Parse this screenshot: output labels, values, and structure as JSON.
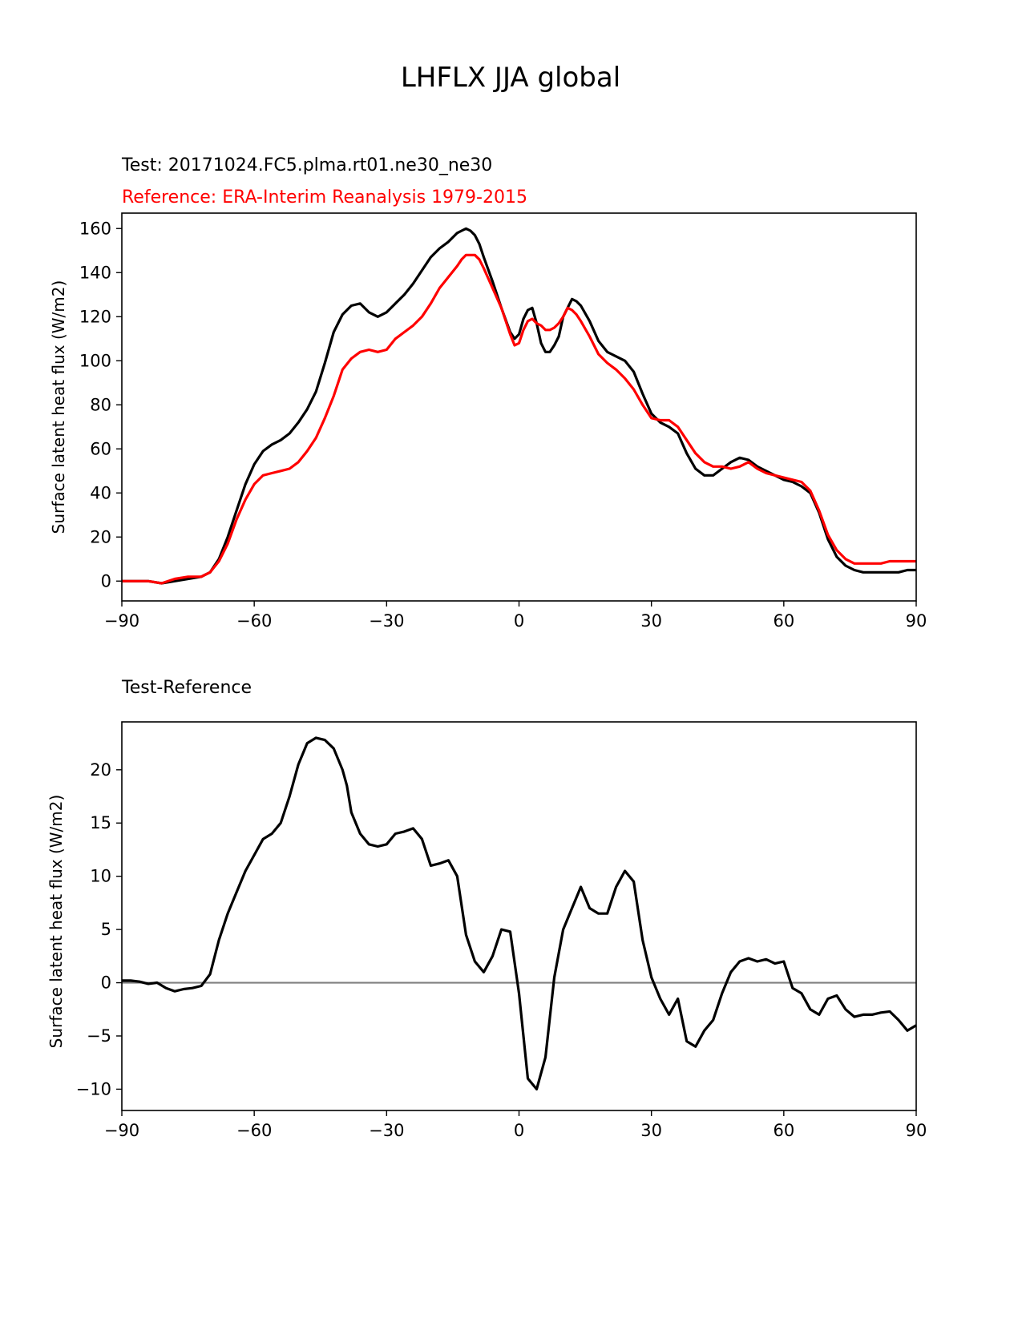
{
  "figure_title": "LHFLX JJA global",
  "colors": {
    "test": "#000000",
    "reference": "#ff0000",
    "zero_line": "#808080",
    "axes": "#000000"
  },
  "chart_data": [
    {
      "type": "line",
      "subtitle_test": "Test: 20171024.FC5.plma.rt01.ne30_ne30",
      "subtitle_ref": "Reference: ERA-Interim Reanalysis 1979-2015",
      "xlabel": "",
      "ylabel": "Surface latent heat flux (W/m2)",
      "xlim": [
        -90,
        90
      ],
      "ylim": [
        -9,
        167
      ],
      "xticks": [
        -90,
        -60,
        -30,
        0,
        30,
        60,
        90
      ],
      "xtick_labels": [
        "−90",
        "−60",
        "−30",
        "0",
        "30",
        "60",
        "90"
      ],
      "yticks": [
        0,
        20,
        40,
        60,
        80,
        100,
        120,
        140,
        160
      ],
      "ytick_labels": [
        "0",
        "20",
        "40",
        "60",
        "80",
        "100",
        "120",
        "140",
        "160"
      ],
      "series": [
        {
          "name": "Test",
          "color": "#000000",
          "x": [
            -90,
            -87,
            -84,
            -81,
            -78,
            -75,
            -72,
            -70,
            -68,
            -66,
            -64,
            -62,
            -60,
            -58,
            -56,
            -54,
            -52,
            -50,
            -48,
            -46,
            -44,
            -42,
            -40,
            -38,
            -36,
            -34,
            -32,
            -30,
            -28,
            -26,
            -24,
            -22,
            -20,
            -18,
            -16,
            -14,
            -13,
            -12,
            -11,
            -10,
            -9,
            -8,
            -6,
            -4,
            -2,
            -1,
            0,
            1,
            2,
            3,
            4,
            5,
            6,
            7,
            8,
            9,
            10,
            11,
            12,
            13,
            14,
            16,
            18,
            20,
            22,
            24,
            26,
            28,
            30,
            32,
            34,
            36,
            38,
            40,
            42,
            44,
            46,
            48,
            50,
            52,
            54,
            56,
            58,
            60,
            62,
            64,
            66,
            68,
            70,
            72,
            74,
            76,
            78,
            80,
            82,
            84,
            86,
            88,
            90
          ],
          "y": [
            0,
            0,
            0,
            -1,
            0,
            1,
            2,
            4,
            10,
            20,
            32,
            44,
            53,
            59,
            62,
            64,
            67,
            72,
            78,
            86,
            99,
            113,
            121,
            125,
            126,
            122,
            120,
            122,
            126,
            130,
            135,
            141,
            147,
            151,
            154,
            158,
            159,
            160,
            159,
            157,
            153,
            147,
            136,
            124,
            113,
            110,
            112,
            119,
            123,
            124,
            117,
            108,
            104,
            104,
            107,
            111,
            120,
            124,
            128,
            127,
            125,
            118,
            109,
            104,
            102,
            100,
            95,
            85,
            76,
            72,
            70,
            67,
            58,
            51,
            48,
            48,
            51,
            54,
            56,
            55,
            52,
            50,
            48,
            46,
            45,
            43,
            40,
            31,
            19,
            11,
            7,
            5,
            4,
            4,
            4,
            4,
            4,
            5,
            5
          ]
        },
        {
          "name": "Reference",
          "color": "#ff0000",
          "x": [
            -90,
            -87,
            -84,
            -81,
            -78,
            -75,
            -72,
            -70,
            -68,
            -66,
            -64,
            -62,
            -60,
            -58,
            -56,
            -54,
            -52,
            -50,
            -48,
            -46,
            -44,
            -42,
            -40,
            -38,
            -36,
            -34,
            -32,
            -30,
            -28,
            -26,
            -24,
            -22,
            -20,
            -18,
            -16,
            -14,
            -13,
            -12,
            -11,
            -10,
            -9,
            -8,
            -6,
            -4,
            -2,
            -1,
            0,
            1,
            2,
            3,
            4,
            5,
            6,
            7,
            8,
            9,
            10,
            11,
            12,
            13,
            14,
            16,
            18,
            20,
            22,
            24,
            26,
            28,
            30,
            32,
            34,
            36,
            38,
            40,
            42,
            44,
            46,
            48,
            50,
            52,
            54,
            56,
            58,
            60,
            62,
            64,
            66,
            68,
            70,
            72,
            74,
            76,
            78,
            80,
            82,
            84,
            86,
            88,
            90
          ],
          "y": [
            0,
            0,
            0,
            -1,
            1,
            2,
            2,
            4,
            9,
            17,
            28,
            37,
            44,
            48,
            49,
            50,
            51,
            54,
            59,
            65,
            74,
            84,
            96,
            101,
            104,
            105,
            104,
            105,
            110,
            113,
            116,
            120,
            126,
            133,
            138,
            143,
            146,
            148,
            148,
            148,
            146,
            142,
            133,
            124,
            112,
            107,
            108,
            114,
            118,
            119,
            117,
            116,
            114,
            114,
            115,
            117,
            120,
            124,
            123,
            121,
            118,
            111,
            103,
            99,
            96,
            92,
            87,
            80,
            74,
            73,
            73,
            70,
            64,
            58,
            54,
            52,
            52,
            51,
            52,
            54,
            51,
            49,
            48,
            47,
            46,
            45,
            41,
            32,
            21,
            14,
            10,
            8,
            8,
            8,
            8,
            9,
            9,
            9,
            9
          ]
        }
      ]
    },
    {
      "type": "line",
      "subtitle": "Test-Reference",
      "xlabel": "",
      "ylabel": "Surface latent heat flux (W/m2)",
      "xlim": [
        -90,
        90
      ],
      "ylim": [
        -12,
        24.5
      ],
      "xticks": [
        -90,
        -60,
        -30,
        0,
        30,
        60,
        90
      ],
      "xtick_labels": [
        "−90",
        "−60",
        "−30",
        "0",
        "30",
        "60",
        "90"
      ],
      "yticks": [
        -10,
        -5,
        0,
        5,
        10,
        15,
        20
      ],
      "ytick_labels": [
        "−10",
        "−5",
        "0",
        "5",
        "10",
        "15",
        "20"
      ],
      "zero_line": 0,
      "series": [
        {
          "name": "Test-Reference",
          "color": "#000000",
          "x": [
            -90,
            -88,
            -86,
            -84,
            -82,
            -80,
            -78,
            -76,
            -74,
            -72,
            -70,
            -68,
            -66,
            -64,
            -62,
            -60,
            -58,
            -56,
            -54,
            -52,
            -50,
            -48,
            -46,
            -44,
            -42,
            -40,
            -39,
            -38,
            -36,
            -34,
            -32,
            -30,
            -28,
            -26,
            -24,
            -22,
            -20,
            -18,
            -16,
            -14,
            -12,
            -10,
            -8,
            -6,
            -4,
            -2,
            0,
            2,
            4,
            6,
            8,
            10,
            12,
            14,
            16,
            18,
            20,
            22,
            24,
            26,
            28,
            30,
            32,
            34,
            36,
            38,
            40,
            42,
            44,
            46,
            48,
            50,
            52,
            54,
            56,
            58,
            60,
            62,
            64,
            66,
            68,
            70,
            72,
            74,
            76,
            78,
            80,
            82,
            84,
            86,
            88,
            90
          ],
          "y": [
            0.2,
            0.2,
            0.1,
            -0.1,
            0.0,
            -0.5,
            -0.8,
            -0.6,
            -0.5,
            -0.3,
            0.8,
            4.0,
            6.5,
            8.5,
            10.5,
            12.0,
            13.5,
            14.0,
            15.0,
            17.5,
            20.5,
            22.5,
            23.0,
            22.8,
            22.0,
            20.0,
            18.5,
            16.0,
            14.0,
            13.0,
            12.8,
            13.0,
            14.0,
            14.2,
            14.5,
            13.5,
            11.0,
            11.2,
            11.5,
            10.0,
            4.5,
            2.0,
            1.0,
            2.5,
            5.0,
            4.8,
            -1.0,
            -9.0,
            -10.0,
            -7.0,
            0.5,
            5.0,
            7.0,
            9.0,
            7.0,
            6.5,
            6.5,
            9.0,
            10.5,
            9.5,
            4.0,
            0.5,
            -1.5,
            -3.0,
            -1.5,
            -5.5,
            -6.0,
            -4.5,
            -3.5,
            -1.0,
            1.0,
            2.0,
            2.3,
            2.0,
            2.2,
            1.8,
            2.0,
            -0.5,
            -1.0,
            -2.5,
            -3.0,
            -1.5,
            -1.2,
            -2.5,
            -3.2,
            -3.0,
            -3.0,
            -2.8,
            -2.7,
            -3.5,
            -4.5,
            -4.0
          ]
        }
      ]
    }
  ]
}
